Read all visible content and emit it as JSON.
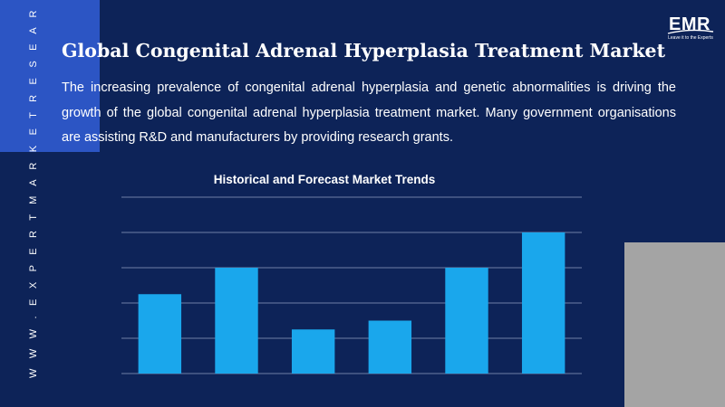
{
  "brand": {
    "website_vertical": "W W W . E X P E R T M A R K E T R E S E A R C H . C O M",
    "logo_text": "EMR",
    "logo_tagline": "Leave it to the Experts",
    "colors": {
      "background": "#0d2358",
      "accent_blue": "#2c55c4",
      "accent_gray": "#a4a4a4",
      "bar": "#1aa7ec"
    }
  },
  "header": {
    "title": "Global Congenital Adrenal Hyperplasia Treatment Market",
    "description": "The increasing prevalence of congenital adrenal hyperplasia and genetic abnormalities is driving the growth of the global congenital adrenal hyperplasia treatment market. Many government organisations are assisting R&D and manufacturers by providing research grants."
  },
  "chart_data": {
    "type": "bar",
    "title": "Historical and Forecast Market Trends",
    "categories": [
      "",
      "",
      "",
      "",
      "",
      ""
    ],
    "values": [
      2.25,
      3.0,
      1.25,
      1.5,
      3.0,
      4.0
    ],
    "ylim": [
      0,
      5
    ],
    "gridlines": 5,
    "grid": true,
    "xlabel": "",
    "ylabel": ""
  }
}
